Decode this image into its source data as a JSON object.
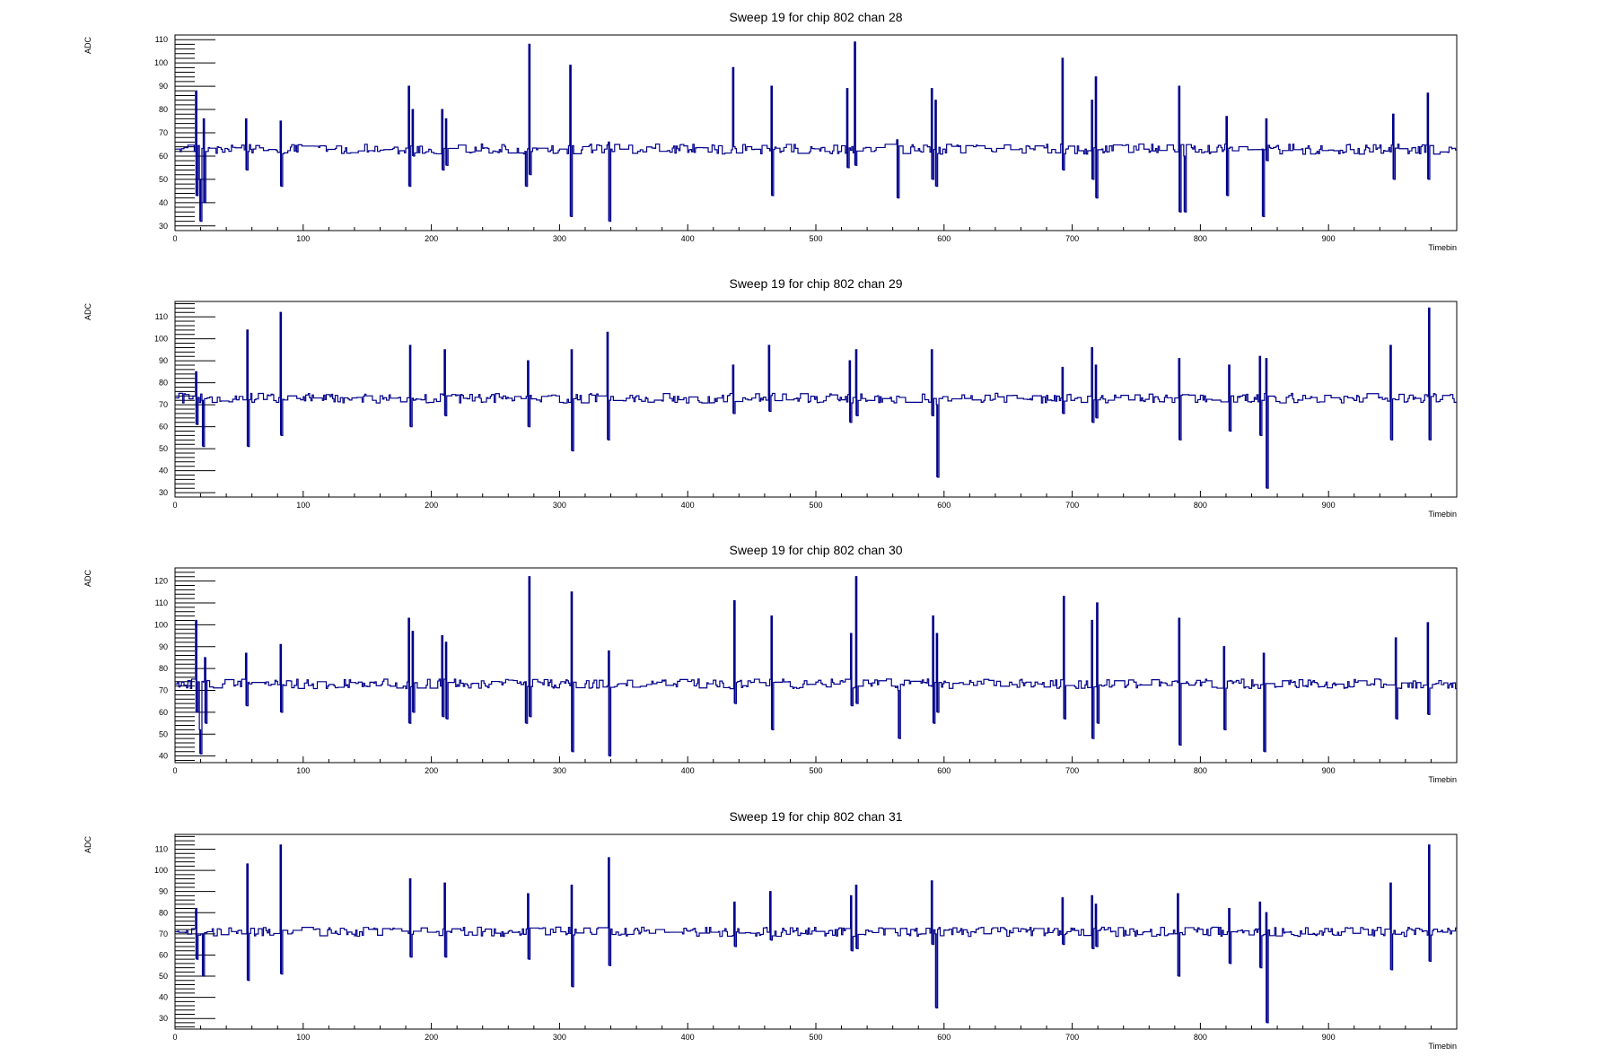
{
  "colors": {
    "trace": "#00008b",
    "axis": "#000000",
    "background": "#ffffff"
  },
  "chart_data": [
    {
      "type": "line",
      "title": "Sweep 19 for chip 802 chan 28",
      "xlabel": "Timebin",
      "ylabel": "ADC",
      "xlim": [
        0,
        1000
      ],
      "ylim": [
        28,
        112
      ],
      "xticks": [
        0,
        100,
        200,
        300,
        400,
        500,
        600,
        700,
        800,
        900
      ],
      "yticks": [
        30,
        40,
        50,
        60,
        70,
        80,
        90,
        100,
        110
      ],
      "baseline": 63,
      "noise": 2.2,
      "seed": 28,
      "spikes": [
        [
          16,
          88,
          43
        ],
        [
          19,
          50,
          32
        ],
        [
          22,
          76,
          40
        ],
        [
          55,
          76,
          54
        ],
        [
          82,
          75,
          47
        ],
        [
          182,
          90,
          47
        ],
        [
          185,
          80,
          60
        ],
        [
          208,
          80,
          54
        ],
        [
          211,
          76,
          56
        ],
        [
          273,
          62,
          47
        ],
        [
          276,
          108,
          52
        ],
        [
          308,
          99,
          34
        ],
        [
          338,
          66,
          32
        ],
        [
          435,
          98,
          64
        ],
        [
          465,
          90,
          43
        ],
        [
          524,
          89,
          55
        ],
        [
          530,
          109,
          56
        ],
        [
          563,
          67,
          42
        ],
        [
          590,
          89,
          50
        ],
        [
          593,
          84,
          47
        ],
        [
          692,
          102,
          54
        ],
        [
          715,
          84,
          50
        ],
        [
          718,
          94,
          42
        ],
        [
          783,
          90,
          36
        ],
        [
          787,
          60,
          36
        ],
        [
          820,
          77,
          43
        ],
        [
          848,
          63,
          34
        ],
        [
          851,
          76,
          58
        ],
        [
          950,
          78,
          50
        ],
        [
          977,
          87,
          50
        ]
      ]
    },
    {
      "type": "line",
      "title": "Sweep 19 for chip 802 chan 29",
      "xlabel": "Timebin",
      "ylabel": "ADC",
      "xlim": [
        0,
        1000
      ],
      "ylim": [
        28,
        117
      ],
      "xticks": [
        0,
        100,
        200,
        300,
        400,
        500,
        600,
        700,
        800,
        900
      ],
      "yticks": [
        30,
        40,
        50,
        60,
        70,
        80,
        90,
        100,
        110
      ],
      "baseline": 73,
      "noise": 2.2,
      "seed": 29,
      "spikes": [
        [
          16,
          85,
          61
        ],
        [
          21,
          72,
          51
        ],
        [
          56,
          104,
          51
        ],
        [
          82,
          112,
          56
        ],
        [
          183,
          97,
          60
        ],
        [
          210,
          95,
          65
        ],
        [
          275,
          90,
          60
        ],
        [
          309,
          95,
          49
        ],
        [
          337,
          103,
          54
        ],
        [
          435,
          88,
          66
        ],
        [
          463,
          97,
          67
        ],
        [
          526,
          90,
          62
        ],
        [
          531,
          95,
          65
        ],
        [
          590,
          95,
          65
        ],
        [
          594,
          70,
          37
        ],
        [
          692,
          87,
          66
        ],
        [
          715,
          96,
          62
        ],
        [
          718,
          88,
          64
        ],
        [
          783,
          91,
          54
        ],
        [
          822,
          88,
          58
        ],
        [
          846,
          92,
          56
        ],
        [
          851,
          91,
          32
        ],
        [
          948,
          97,
          54
        ],
        [
          978,
          114,
          54
        ]
      ]
    },
    {
      "type": "line",
      "title": "Sweep 19 for chip 802 chan 30",
      "xlabel": "Timebin",
      "ylabel": "ADC",
      "xlim": [
        0,
        1000
      ],
      "ylim": [
        37,
        126
      ],
      "xticks": [
        0,
        100,
        200,
        300,
        400,
        500,
        600,
        700,
        800,
        900
      ],
      "yticks": [
        40,
        50,
        60,
        70,
        80,
        90,
        100,
        110,
        120
      ],
      "baseline": 73,
      "noise": 2.2,
      "seed": 30,
      "spikes": [
        [
          16,
          102,
          60
        ],
        [
          19,
          52,
          41
        ],
        [
          23,
          85,
          55
        ],
        [
          55,
          87,
          63
        ],
        [
          82,
          91,
          60
        ],
        [
          182,
          103,
          55
        ],
        [
          185,
          97,
          60
        ],
        [
          208,
          95,
          58
        ],
        [
          211,
          92,
          57
        ],
        [
          273,
          74,
          55
        ],
        [
          276,
          122,
          58
        ],
        [
          309,
          115,
          42
        ],
        [
          338,
          88,
          40
        ],
        [
          436,
          111,
          64
        ],
        [
          465,
          104,
          52
        ],
        [
          527,
          96,
          63
        ],
        [
          531,
          122,
          64
        ],
        [
          564,
          70,
          48
        ],
        [
          591,
          104,
          55
        ],
        [
          594,
          96,
          60
        ],
        [
          693,
          113,
          57
        ],
        [
          715,
          102,
          48
        ],
        [
          719,
          110,
          55
        ],
        [
          783,
          103,
          45
        ],
        [
          818,
          90,
          52
        ],
        [
          849,
          87,
          42
        ],
        [
          952,
          94,
          57
        ],
        [
          977,
          101,
          59
        ]
      ]
    },
    {
      "type": "line",
      "title": "Sweep 19 for chip 802 chan 31",
      "xlabel": "Timebin",
      "ylabel": "ADC",
      "xlim": [
        0,
        1000
      ],
      "ylim": [
        25,
        117
      ],
      "xticks": [
        0,
        100,
        200,
        300,
        400,
        500,
        600,
        700,
        800,
        900
      ],
      "yticks": [
        30,
        40,
        50,
        60,
        70,
        80,
        90,
        100,
        110
      ],
      "baseline": 71,
      "noise": 2.2,
      "seed": 31,
      "spikes": [
        [
          16,
          82,
          58
        ],
        [
          21,
          70,
          50
        ],
        [
          56,
          103,
          48
        ],
        [
          82,
          112,
          51
        ],
        [
          183,
          96,
          59
        ],
        [
          210,
          94,
          59
        ],
        [
          275,
          89,
          58
        ],
        [
          309,
          93,
          45
        ],
        [
          338,
          106,
          55
        ],
        [
          436,
          85,
          64
        ],
        [
          464,
          90,
          67
        ],
        [
          527,
          88,
          62
        ],
        [
          531,
          93,
          63
        ],
        [
          590,
          95,
          65
        ],
        [
          593,
          70,
          35
        ],
        [
          692,
          87,
          65
        ],
        [
          715,
          88,
          63
        ],
        [
          718,
          84,
          64
        ],
        [
          782,
          89,
          50
        ],
        [
          822,
          82,
          56
        ],
        [
          846,
          85,
          54
        ],
        [
          851,
          80,
          28
        ],
        [
          948,
          94,
          53
        ],
        [
          978,
          112,
          57
        ]
      ]
    }
  ]
}
